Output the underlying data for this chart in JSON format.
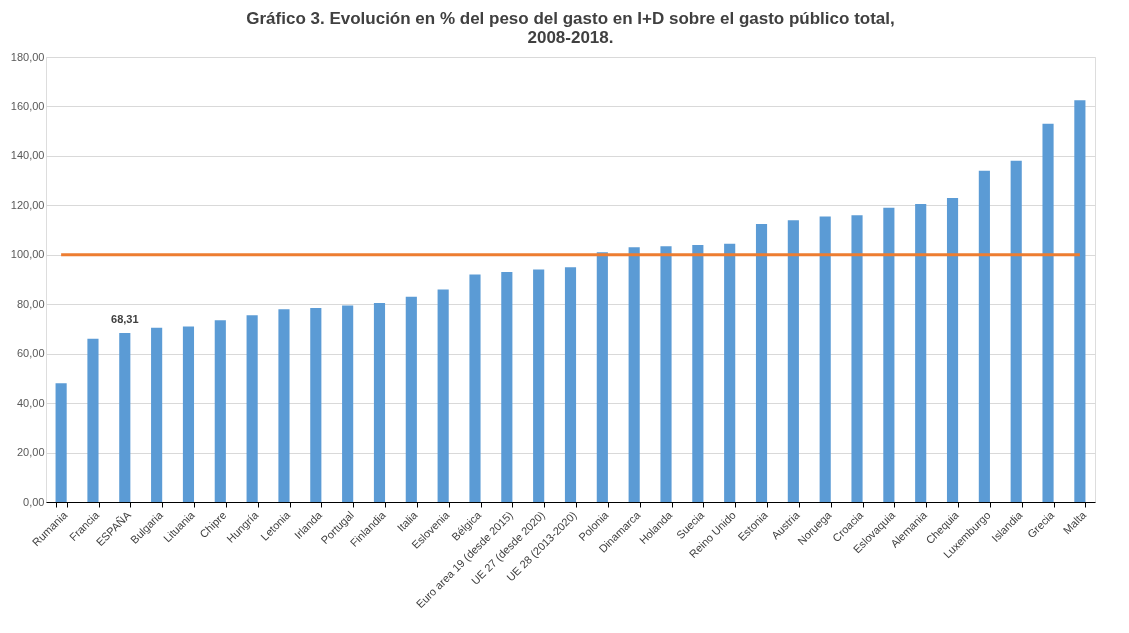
{
  "chart_data": {
    "type": "bar",
    "title": [
      "Gráfico 3. Evolución en % del peso del gasto en I+D sobre el gasto público total,",
      "2008-2018."
    ],
    "categories": [
      "Rumania",
      "Francia",
      "ESPAÑA",
      "Bulgaria",
      "Lituania",
      "Chipre",
      "Hungría",
      "Letonia",
      "Irlanda",
      "Portugal",
      "Finlandia",
      "Italia",
      "Eslovenia",
      "Bélgica",
      "Euro area 19 (desde 2015)",
      "UE 27 (desde 2020)",
      "UE 28 (2013-2020)",
      "Polonia",
      "Dinamarca",
      "Holanda",
      "Suecia",
      "Reino Unido",
      "Estonia",
      "Austria",
      "Noruega",
      "Croacia",
      "Eslovaquia",
      "Alemania",
      "Chequia",
      "Luxemburgo",
      "Islandia",
      "Grecia",
      "Malta"
    ],
    "values": [
      48,
      66,
      68.31,
      70.5,
      71,
      73.5,
      75.5,
      78,
      78.5,
      79.5,
      80.5,
      83,
      86,
      92,
      93,
      94,
      95,
      101,
      103,
      103.5,
      104,
      104.5,
      112.5,
      114,
      115.5,
      116,
      119,
      120.5,
      123,
      134,
      138,
      153,
      162.5
    ],
    "value_labels": [
      null,
      null,
      "68,31",
      null,
      null,
      null,
      null,
      null,
      null,
      null,
      null,
      null,
      null,
      null,
      null,
      null,
      null,
      null,
      null,
      null,
      null,
      null,
      null,
      null,
      null,
      null,
      null,
      null,
      null,
      null,
      null,
      null,
      null
    ],
    "color": "#5b9bd5",
    "ylim": [
      0,
      180
    ],
    "yticks": [
      {
        "value": 0,
        "label": "0,00"
      },
      {
        "value": 20,
        "label": "20,00"
      },
      {
        "value": 40,
        "label": "40,00"
      },
      {
        "value": 60,
        "label": "60,00"
      },
      {
        "value": 80,
        "label": "80,00"
      },
      {
        "value": 100,
        "label": "100,00"
      },
      {
        "value": 120,
        "label": "120,00"
      },
      {
        "value": 140,
        "label": "140,00"
      },
      {
        "value": 160,
        "label": "160,00"
      },
      {
        "value": 180,
        "label": "180,00"
      }
    ],
    "grid": "y",
    "ref_lines": [
      {
        "axis": "y",
        "value": 100,
        "color": "#ed7d31"
      }
    ]
  }
}
